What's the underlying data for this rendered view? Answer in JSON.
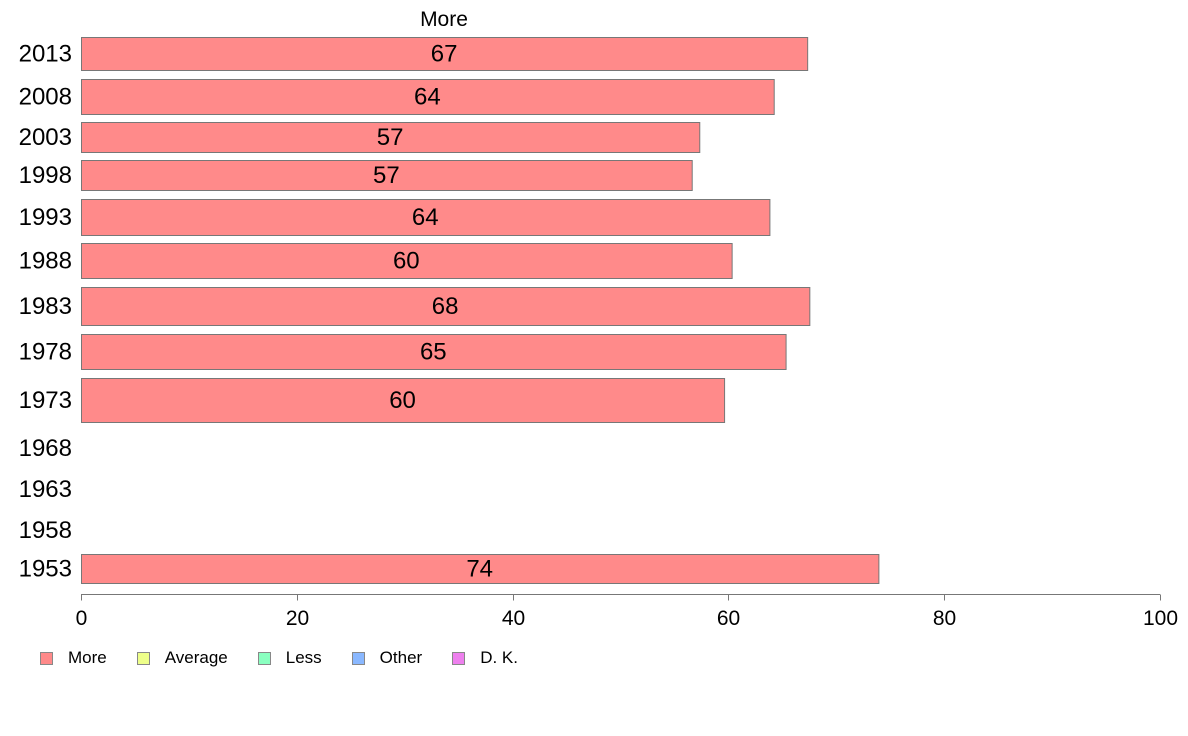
{
  "chart_data": {
    "type": "bar",
    "orientation": "horizontal",
    "title": "More",
    "categories": [
      "2013",
      "2008",
      "2003",
      "1998",
      "1993",
      "1988",
      "1983",
      "1978",
      "1973",
      "1968",
      "1963",
      "1958",
      "1953"
    ],
    "series": [
      {
        "name": "More",
        "color": "#ff8a8a",
        "values": [
          67,
          64,
          57,
          57,
          64,
          60,
          68,
          65,
          60,
          null,
          null,
          null,
          74
        ],
        "precise_values": [
          67.3,
          64.2,
          57.3,
          56.6,
          63.8,
          60.3,
          67.5,
          65.3,
          59.6,
          null,
          null,
          null,
          73.9
        ]
      }
    ],
    "xlim": [
      0,
      100
    ],
    "xticks": [
      0,
      20,
      40,
      60,
      80,
      100
    ],
    "grid": false,
    "legend_position": "bottom-left",
    "legend": [
      {
        "name": "More",
        "color": "#ff8a8a"
      },
      {
        "name": "Average",
        "color": "#eeff8a"
      },
      {
        "name": "Less",
        "color": "#8affc0"
      },
      {
        "name": "Other",
        "color": "#8ab8ff"
      },
      {
        "name": "D. K.",
        "color": "#ee80ee"
      }
    ]
  }
}
